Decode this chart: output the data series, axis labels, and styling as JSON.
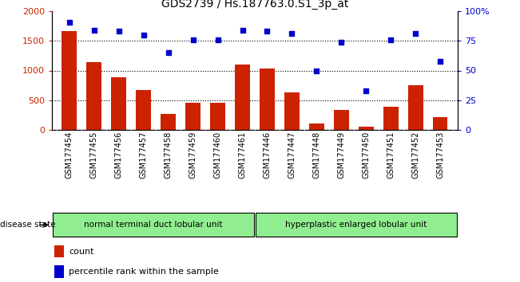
{
  "title": "GDS2739 / Hs.187763.0.S1_3p_at",
  "samples": [
    "GSM177454",
    "GSM177455",
    "GSM177456",
    "GSM177457",
    "GSM177458",
    "GSM177459",
    "GSM177460",
    "GSM177461",
    "GSM177446",
    "GSM177447",
    "GSM177448",
    "GSM177449",
    "GSM177450",
    "GSM177451",
    "GSM177452",
    "GSM177453"
  ],
  "counts": [
    1660,
    1140,
    890,
    675,
    265,
    460,
    460,
    1100,
    1040,
    625,
    110,
    330,
    55,
    390,
    745,
    215
  ],
  "percentiles": [
    91,
    84,
    83,
    80,
    65,
    76,
    76,
    84,
    83,
    81,
    50,
    74,
    33,
    76,
    81,
    58
  ],
  "group1_label": "normal terminal duct lobular unit",
  "group2_label": "hyperplastic enlarged lobular unit",
  "group1_count": 8,
  "group2_count": 8,
  "bar_color": "#cc2200",
  "scatter_color": "#0000cc",
  "ylim_left": [
    0,
    2000
  ],
  "ylim_right": [
    0,
    100
  ],
  "yticks_left": [
    0,
    500,
    1000,
    1500,
    2000
  ],
  "yticks_right": [
    0,
    25,
    50,
    75,
    100
  ],
  "ytick_labels_right": [
    "0",
    "25",
    "50",
    "75",
    "100%"
  ],
  "grid_values": [
    500,
    1000,
    1500
  ],
  "legend_count_label": "count",
  "legend_pct_label": "percentile rank within the sample",
  "disease_state_label": "disease state",
  "plot_bg_color": "#ffffff",
  "xticklabel_bg_color": "#d3d3d3",
  "group_bg_color": "#90ee90",
  "title_fontsize": 10,
  "tick_fontsize": 7,
  "bar_width": 0.6
}
